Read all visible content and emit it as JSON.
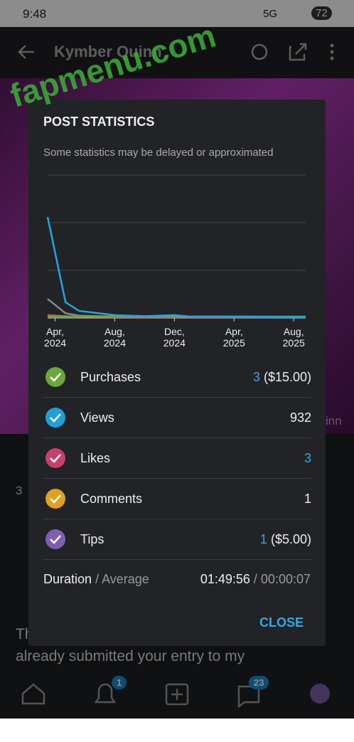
{
  "status_bar": {
    "time": "9:48",
    "network": "5G",
    "battery": "72"
  },
  "header": {
    "title": "Kymber Quinn"
  },
  "watermark": "fapmenu.com",
  "background": {
    "count": "3",
    "side_text": "inn",
    "post_text_1": "Th",
    "post_text_2": "already submitted your entry to my"
  },
  "bottom_nav": {
    "notifications_badge": "1",
    "messages_badge": "23"
  },
  "modal": {
    "title": "POST STATISTICS",
    "subtitle": "Some statistics may be delayed or approximated",
    "chart_data": {
      "type": "line",
      "x": [
        -0.5,
        0.7,
        1.6,
        4,
        6,
        8,
        9,
        12,
        16.8
      ],
      "xlim": [
        -0.5,
        16.8
      ],
      "xticks": [
        {
          "value": 0,
          "label": "Apr, 2024"
        },
        {
          "value": 4,
          "label": "Aug, 2024"
        },
        {
          "value": 8,
          "label": "Dec, 2024"
        },
        {
          "value": 12,
          "label": "Apr, 2025"
        },
        {
          "value": 16,
          "label": "Aug, 2025"
        }
      ],
      "ylim": [
        0,
        300
      ],
      "yticks": [
        0,
        100,
        200,
        300
      ],
      "grid": true,
      "series": [
        {
          "color": "#8a8a8a",
          "values": [
            40,
            10,
            5,
            3,
            3,
            3,
            2,
            2,
            2
          ]
        },
        {
          "color": "#d04a6a",
          "values": [
            6,
            4,
            3,
            2,
            2,
            2,
            2,
            2,
            2
          ]
        },
        {
          "color": "#6aa83a",
          "values": [
            3,
            3,
            3,
            3,
            3,
            3,
            3,
            3,
            3
          ]
        },
        {
          "color": "#1fa8e0",
          "values": [
            212,
            33,
            15,
            6,
            4,
            6,
            3,
            3,
            2
          ]
        }
      ]
    },
    "rows": [
      {
        "label": "Purchases",
        "color": "#6aa83a",
        "count": "3",
        "amount": "($15.00)",
        "highlight": true
      },
      {
        "label": "Views",
        "color": "#1fa0d8",
        "count": "932",
        "highlight": false
      },
      {
        "label": "Likes",
        "color": "#c8406a",
        "count": "3",
        "highlight": true
      },
      {
        "label": "Comments",
        "color": "#e0a020",
        "count": "1",
        "highlight": false
      },
      {
        "label": "Tips",
        "color": "#7b5fb0",
        "count": "1",
        "amount": "($5.00)",
        "highlight": true
      }
    ],
    "duration": {
      "label": "Duration",
      "label_avg": "/ Average",
      "total": "01:49:56",
      "avg": "/ 00:00:07"
    },
    "close": "CLOSE"
  }
}
